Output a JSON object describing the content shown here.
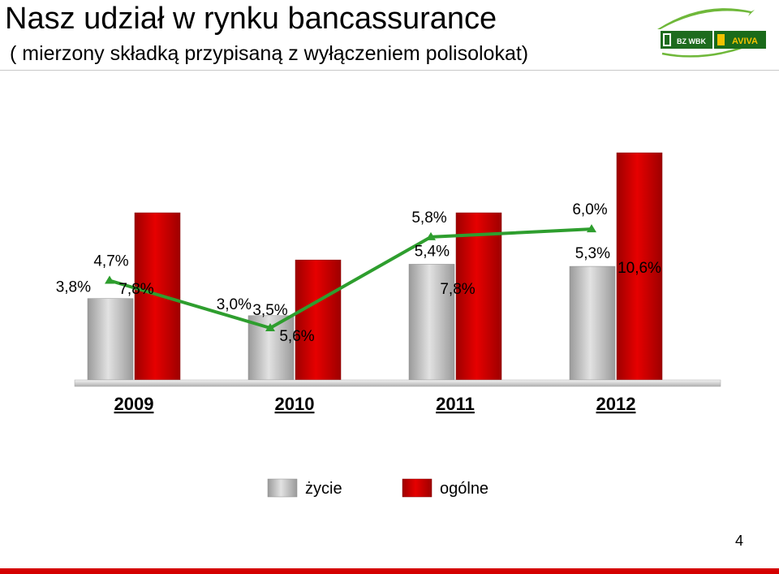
{
  "header": {
    "title": "Nasz udział w rynku bancassurance",
    "subtitle": "( mierzony składką przypisaną z wyłączeniem polisolokat)"
  },
  "logo": {
    "left_text": "BZ WBK",
    "right_text": "AVIVA",
    "colors": {
      "left": "#1e6b1e",
      "right": "#1a6b1a",
      "accent": "#f2c200",
      "swoosh": "#6fb83a"
    }
  },
  "chart_data": {
    "type": "bar",
    "categories": [
      "2009",
      "2010",
      "2011",
      "2012"
    ],
    "series": [
      {
        "name": "życie",
        "type": "bar",
        "values": [
          3.8,
          3.0,
          5.4,
          5.3
        ],
        "labels": [
          "3,8%",
          "3,0%",
          "5,4%",
          "5,3%"
        ],
        "color": "#bfbfbf"
      },
      {
        "name": "ogólne",
        "type": "bar",
        "values": [
          7.8,
          5.6,
          7.8,
          10.6
        ],
        "labels": [
          "7,8%",
          "5,6%",
          "7,8%",
          "10,6%"
        ],
        "color": "#d00000"
      },
      {
        "type": "line",
        "values": [
          4.7,
          3.5,
          5.8,
          6.0
        ],
        "labels": [
          "4,7%",
          "3,5%",
          "5,8%",
          "6,0%"
        ],
        "color": "#2e9e2e"
      }
    ],
    "legend": {
      "position": "bottom",
      "items": [
        "życie",
        "ogólne"
      ]
    },
    "title": "",
    "xlabel": "",
    "ylabel": "",
    "grid": false
  },
  "page_number": "4"
}
